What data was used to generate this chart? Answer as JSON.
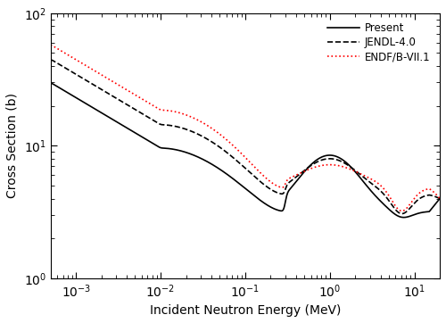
{
  "title": "",
  "xlabel": "Incident Neutron Energy (MeV)",
  "ylabel": "Cross Section (b)",
  "xlim": [
    0.0005,
    20
  ],
  "ylim": [
    1,
    100
  ],
  "legend_labels": [
    "Present",
    "JENDL-4.0",
    "ENDF/B-VII.1"
  ],
  "legend_colors": [
    "black",
    "black",
    "red"
  ],
  "legend_linestyles": [
    "-",
    "--",
    ":"
  ],
  "legend_linewidths": [
    1.2,
    1.2,
    1.2
  ],
  "figsize": [
    5.0,
    3.62
  ],
  "dpi": 100
}
